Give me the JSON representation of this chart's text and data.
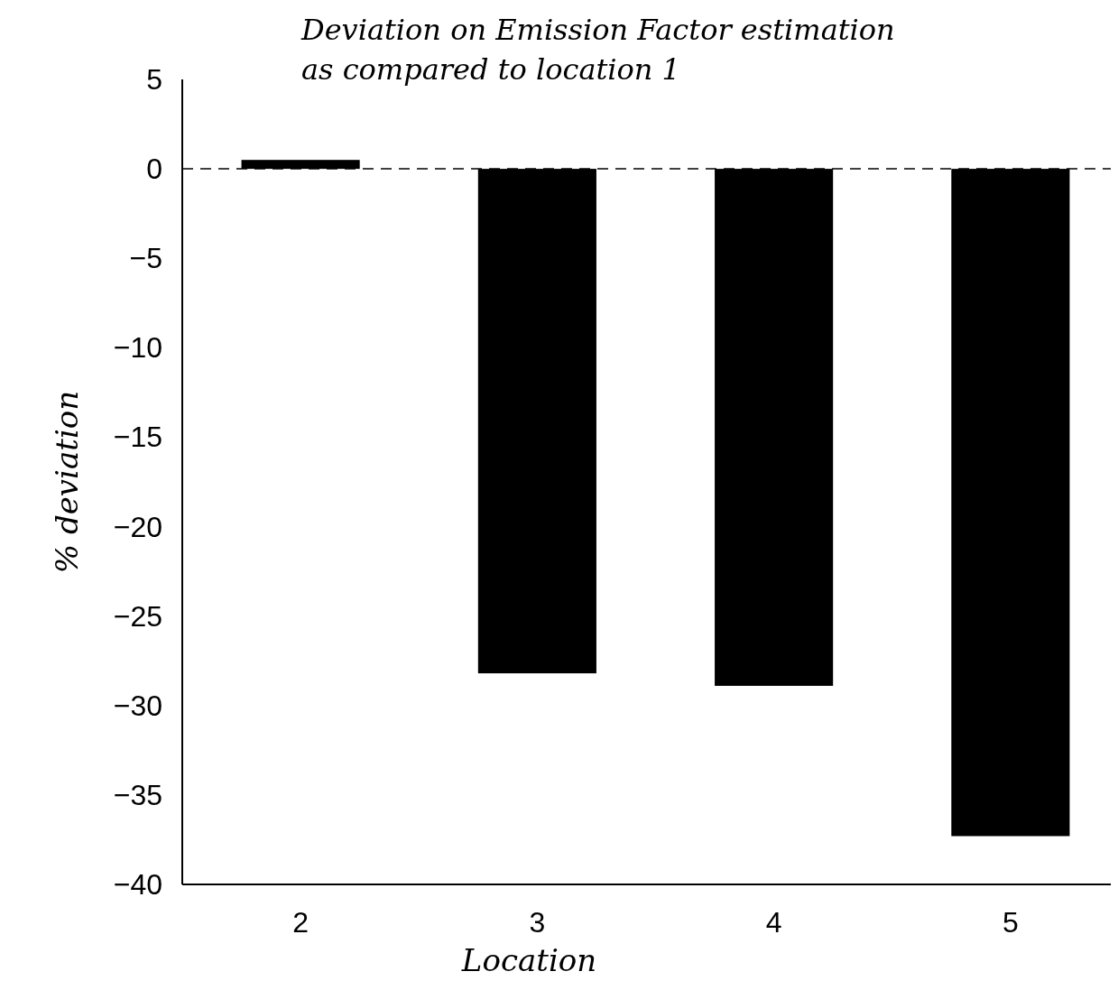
{
  "chart_data": {
    "type": "bar",
    "title": "Deviation on Emission Factor estimation\nas compared to location 1",
    "xlabel": "Location",
    "ylabel": "% deviation",
    "categories": [
      "2",
      "3",
      "4",
      "5"
    ],
    "values": [
      0.5,
      -28.2,
      -28.9,
      -37.3
    ],
    "color": "#000000",
    "ylim": [
      -40,
      5
    ],
    "yticks": [
      5,
      0,
      -5,
      -10,
      -15,
      -20,
      -25,
      -30,
      -35,
      -40
    ],
    "grid": false,
    "ref_lines": [
      {
        "axis": "y",
        "value": 0,
        "line_style": "dashed",
        "color": "#000000"
      }
    ]
  }
}
